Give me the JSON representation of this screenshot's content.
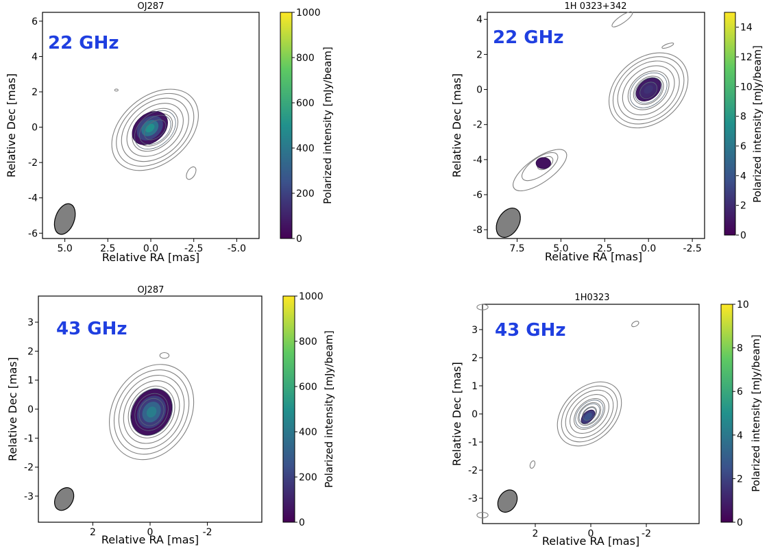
{
  "colors": {
    "freq_label": "#1f3fe0",
    "contour": "#808080",
    "beam": "#808080",
    "colormap": [
      "#440154",
      "#3b528b",
      "#21918c",
      "#5ec962",
      "#fde725"
    ]
  },
  "chart_data": [
    {
      "type": "heatmap",
      "source": "OJ287",
      "title": "OJ287",
      "frequency": "22 GHz",
      "xlabel": "Relative RA [mas]",
      "ylabel": "Relative Dec [mas]",
      "xlim": [
        6.3,
        -6.3
      ],
      "ylim": [
        -6.3,
        6.5
      ],
      "xticks": [
        "5.0",
        "2.5",
        "0.0",
        "-2.5",
        "-5.0"
      ],
      "xtick_values": [
        5.0,
        2.5,
        0.0,
        -2.5,
        -5.0
      ],
      "yticks": [
        "-6",
        "-4",
        "-2",
        "0",
        "2",
        "4",
        "6"
      ],
      "ytick_values": [
        -6,
        -4,
        -2,
        0,
        2,
        4,
        6
      ],
      "colorbar": {
        "label": "Polarized intensity [mJy/beam]",
        "range": [
          0,
          1000
        ],
        "ticks": [
          "0",
          "200",
          "400",
          "600",
          "800",
          "1000"
        ],
        "tick_values": [
          0,
          200,
          400,
          600,
          800,
          1000
        ]
      },
      "core": {
        "x": 0.0,
        "y": 0.0,
        "peak": 550
      },
      "beam": {
        "x": 5.0,
        "y": -5.2
      },
      "grid": false
    },
    {
      "type": "heatmap",
      "source": "1H 0323+342",
      "title": "1H 0323+342",
      "frequency": "22 GHz",
      "xlabel": "Relative RA [mas]",
      "ylabel": "Relative Dec [mas]",
      "xlim": [
        9.2,
        -3.2
      ],
      "ylim": [
        -8.5,
        4.4
      ],
      "xticks": [
        "7.5",
        "5.0",
        "2.5",
        "0.0",
        "-2.5"
      ],
      "xtick_values": [
        7.5,
        5.0,
        2.5,
        0.0,
        -2.5
      ],
      "yticks": [
        "-8",
        "-6",
        "-4",
        "-2",
        "0",
        "2",
        "4"
      ],
      "ytick_values": [
        -8,
        -6,
        -4,
        -2,
        0,
        2,
        4
      ],
      "colorbar": {
        "label": "Polarized intensity [mJy/beam]",
        "range": [
          0,
          15
        ],
        "ticks": [
          "0",
          "2",
          "4",
          "6",
          "8",
          "10",
          "12",
          "14"
        ],
        "tick_values": [
          0,
          2,
          4,
          6,
          8,
          10,
          12,
          14
        ]
      },
      "core": {
        "x": 0.0,
        "y": 0.0,
        "peak": 2
      },
      "knot": {
        "x": 6.0,
        "y": -4.2,
        "peak": 1
      },
      "beam": {
        "x": 8.0,
        "y": -7.6
      },
      "grid": false
    },
    {
      "type": "heatmap",
      "source": "OJ287",
      "title": "OJ287",
      "frequency": "43 GHz",
      "xlabel": "Relative RA [mas]",
      "ylabel": "Relative Dec [mas]",
      "xlim": [
        3.9,
        -3.9
      ],
      "ylim": [
        -3.9,
        3.9
      ],
      "xticks": [
        "2",
        "0",
        "-2"
      ],
      "xtick_values": [
        2,
        0,
        -2
      ],
      "yticks": [
        "-3",
        "-2",
        "-1",
        "0",
        "1",
        "2",
        "3"
      ],
      "ytick_values": [
        -3,
        -2,
        -1,
        0,
        1,
        2,
        3
      ],
      "colorbar": {
        "label": "Polarized intensity [mJy/beam]",
        "range": [
          0,
          1000
        ],
        "ticks": [
          "0",
          "200",
          "400",
          "600",
          "800",
          "1000"
        ],
        "tick_values": [
          0,
          200,
          400,
          600,
          800,
          1000
        ]
      },
      "core": {
        "x": 0.0,
        "y": 0.0,
        "peak": 400
      },
      "beam": {
        "x": 3.0,
        "y": -3.1
      },
      "grid": false
    },
    {
      "type": "heatmap",
      "source": "1H0323",
      "title": "1H0323",
      "frequency": "43 GHz",
      "xlabel": "Relative RA [mas]",
      "ylabel": "Relative Dec [mas]",
      "xlim": [
        3.9,
        -3.9
      ],
      "ylim": [
        -3.9,
        3.9
      ],
      "xticks": [
        "2",
        "0",
        "-2"
      ],
      "xtick_values": [
        2,
        0,
        -2
      ],
      "yticks": [
        "-3",
        "-2",
        "-1",
        "0",
        "1",
        "2",
        "3"
      ],
      "ytick_values": [
        -3,
        -2,
        -1,
        0,
        1,
        2,
        3
      ],
      "colorbar": {
        "label": "Polarized intensity [mJy/beam]",
        "range": [
          0,
          10
        ],
        "ticks": [
          "0",
          "2",
          "4",
          "6",
          "8",
          "10"
        ],
        "tick_values": [
          0,
          2,
          4,
          6,
          8,
          10
        ]
      },
      "core": {
        "x": 0.0,
        "y": -0.1,
        "peak": 2
      },
      "beam": {
        "x": 3.0,
        "y": -3.1
      },
      "grid": false
    }
  ]
}
